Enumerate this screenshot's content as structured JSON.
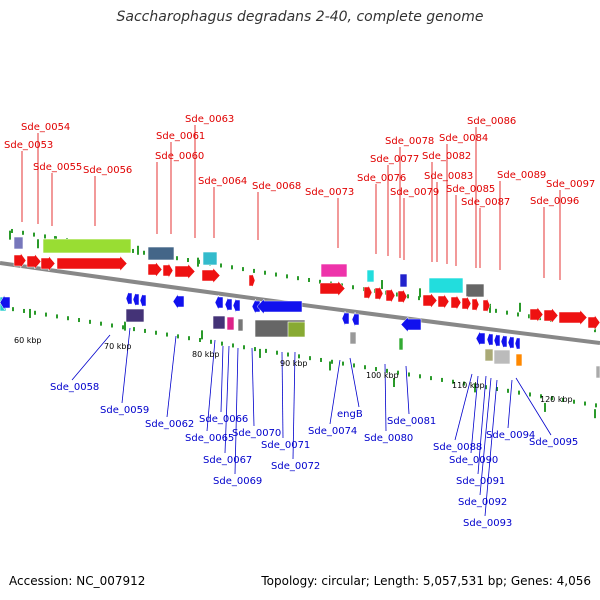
{
  "title": "Saccharophagus degradans 2-40, complete genome",
  "footer": {
    "accession": "Accession: NC_007912",
    "stats": "Topology: circular; Length: 5,057,531 bp; Genes: 4,056"
  },
  "colors": {
    "forward_label": "#e00000",
    "reverse_label": "#0000cc",
    "backbone": "#888888"
  },
  "scale_labels": [
    "60 kbp",
    "70 kbp",
    "80 kbp",
    "90 kbp",
    "100 kbp",
    "110 kbp",
    "120 kbp"
  ],
  "forward_genes": [
    "Sde_0053",
    "Sde_0054",
    "Sde_0055",
    "Sde_0056",
    "Sde_0060",
    "Sde_0061",
    "Sde_0063",
    "Sde_0064",
    "Sde_0068",
    "Sde_0073",
    "Sde_0076",
    "Sde_0077",
    "Sde_0078",
    "Sde_0079",
    "Sde_0082",
    "Sde_0083",
    "Sde_0084",
    "Sde_0085",
    "Sde_0086",
    "Sde_0087",
    "Sde_0089",
    "Sde_0096",
    "Sde_0097"
  ],
  "reverse_genes": [
    "Sde_0058",
    "Sde_0059",
    "Sde_0062",
    "Sde_0065",
    "Sde_0066",
    "Sde_0067",
    "Sde_0069",
    "Sde_0070",
    "Sde_0071",
    "Sde_0072",
    "Sde_0074",
    "engB",
    "Sde_0080",
    "Sde_0081",
    "Sde_0088",
    "Sde_0090",
    "Sde_0091",
    "Sde_0092",
    "Sde_0093",
    "Sde_0094",
    "Sde_0095"
  ]
}
